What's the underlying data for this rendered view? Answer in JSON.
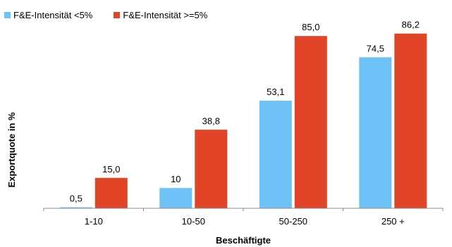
{
  "chart_data": {
    "type": "bar",
    "categories": [
      "1-10",
      "10-50",
      "50-250",
      "250 +"
    ],
    "series": [
      {
        "name": "F&E-Intensität <5%",
        "color": "#6ec2f7",
        "values": [
          0.5,
          10,
          53.1,
          74.5
        ],
        "labels": [
          "0,5",
          "10",
          "53,1",
          "74,5"
        ]
      },
      {
        "name": "F&E-Intensität >=5%",
        "color": "#e24427",
        "values": [
          15.0,
          38.8,
          85.0,
          86.2
        ],
        "labels": [
          "15,0",
          "38,8",
          "85,0",
          "86,2"
        ]
      }
    ],
    "xlabel": "Beschäftigte",
    "ylabel": "Exportquote in %",
    "ylim": [
      0,
      100
    ],
    "grid": false,
    "legend": "top-left"
  }
}
